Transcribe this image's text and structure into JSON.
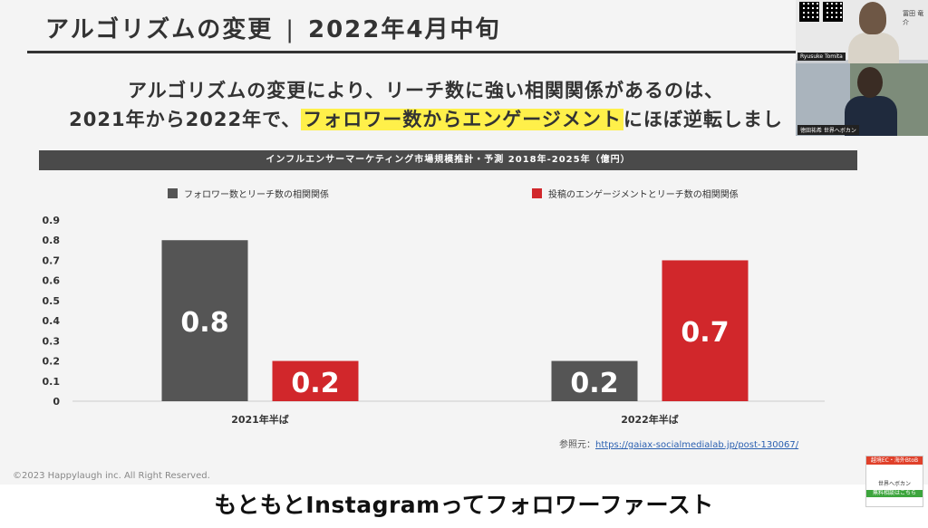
{
  "slide": {
    "title": "アルゴリズムの変更",
    "title_sep": "|",
    "title_date": "2022年4月中旬",
    "lead_line1": "アルゴリズムの変更により、リーチ数に強い相関関係があるのは、",
    "lead_line2_pre": "2021年から2022年で、",
    "lead_line2_hl": "フォロワー数からエンゲージメント",
    "lead_line2_post": "にほぼ逆転しまし",
    "chart_header": "インフルエンサーマーケティング市場規模推計・予測 2018年-2025年（億円）",
    "credit_label": "参照元：",
    "credit_link": "https://gaiax-socialmedialab.jp/post-130067/",
    "copyright": "©2023 Happylaugh inc. All Right Reserved."
  },
  "caption": "もともとInstagramってフォロワーファースト",
  "camera": {
    "label_top": "Ryusuke Tomita",
    "label_bottom": "徳田祐希 世界へボカン",
    "card_name": "冨田 竜介"
  },
  "ad": {
    "top": "越境EC・海外BtoB",
    "mid": "世界へボカン",
    "bottom": "無料相談はこちら"
  },
  "colors": {
    "gray": "#555555",
    "red": "#d1272b",
    "highlight": "#fff04a"
  },
  "chart_data": {
    "type": "bar",
    "categories": [
      "2021年半ば",
      "2022年半ば"
    ],
    "series": [
      {
        "name": "フォロワー数とリーチ数の相関関係",
        "color": "#555555",
        "values": [
          0.8,
          0.2
        ]
      },
      {
        "name": "投稿のエンゲージメントとリーチ数の相関関係",
        "color": "#d1272b",
        "values": [
          0.2,
          0.7
        ]
      }
    ],
    "yticks": [
      "0",
      "0.1",
      "0.2",
      "0.3",
      "0.4",
      "0.5",
      "0.6",
      "0.7",
      "0.8",
      "0.9"
    ],
    "ylim": [
      0,
      0.9
    ],
    "data_labels": [
      "0.8",
      "0.2",
      "0.2",
      "0.7"
    ],
    "legend": "top"
  }
}
